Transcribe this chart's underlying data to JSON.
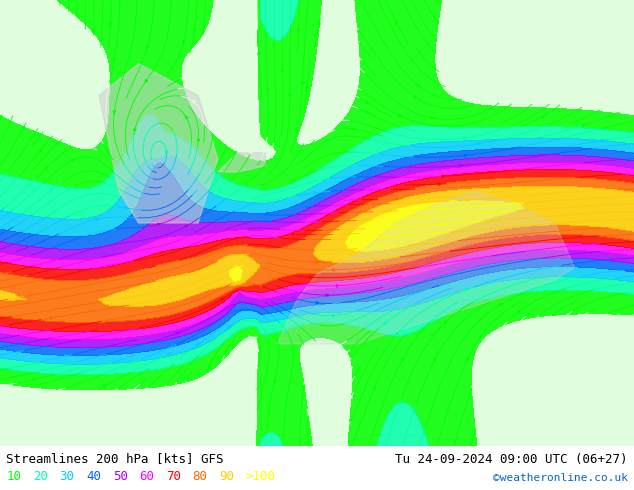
{
  "title_left": "Streamlines 200 hPa [kts] GFS",
  "title_right": "Tu 24-09-2024 09:00 UTC (06+27)",
  "credit": "©weatheronline.co.uk",
  "legend_values": [
    "10",
    "20",
    "30",
    "40",
    "50",
    "60",
    "70",
    "80",
    "90",
    ">100"
  ],
  "legend_colors": [
    "#00ff00",
    "#00ffaa",
    "#00ccff",
    "#0066ff",
    "#aa00ff",
    "#ff00ff",
    "#ff0000",
    "#ff6600",
    "#ffcc00",
    "#ffff00"
  ],
  "background_color": "#ffffff",
  "map_bg_land": "#c8f0a0",
  "map_bg_sea": "#ffffff",
  "speed_colors": {
    "10": "#00ff00",
    "20": "#00ffaa",
    "30": "#00ccff",
    "40": "#0066ff",
    "50": "#aa00ff",
    "60": "#ff00ff",
    "70": "#ff0000",
    "80": "#ff6600",
    "90": "#ffcc00",
    "100": "#ffff00"
  },
  "figsize": [
    6.34,
    4.9
  ],
  "dpi": 100,
  "font_color": "#000000",
  "font_size_title": 9,
  "font_size_legend": 9,
  "font_size_credit": 8,
  "bottom_bar_color": "#ffffff"
}
